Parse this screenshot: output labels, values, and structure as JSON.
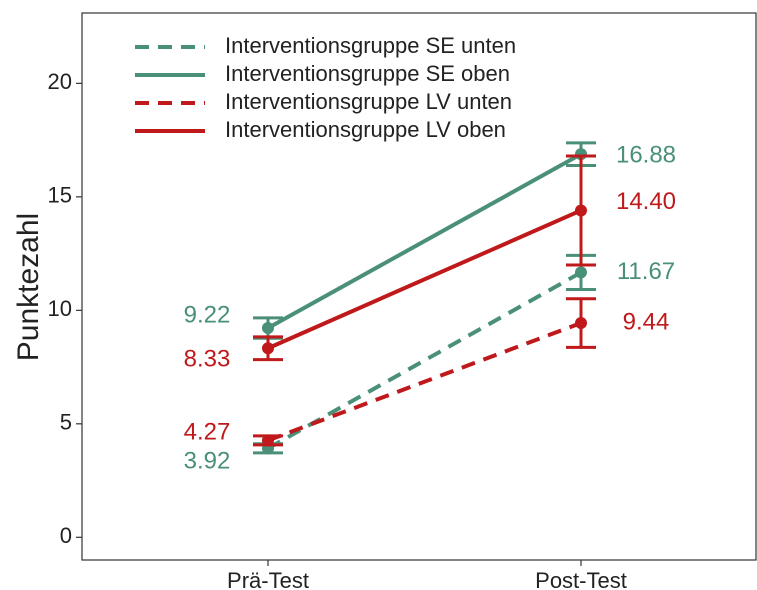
{
  "chart_data": {
    "type": "line",
    "y_label": "Punktezahl",
    "categories": [
      "Prä-Test",
      "Post-Test"
    ],
    "series": [
      {
        "name": "Interventionsgruppe SE unten",
        "color": "#4a8f78",
        "dashed": true,
        "values": [
          3.92,
          11.67
        ],
        "value_labels": [
          "3.92",
          "11.67"
        ],
        "errors": [
          0.2,
          0.75
        ]
      },
      {
        "name": "Interventionsgruppe SE oben",
        "color": "#4a8f78",
        "dashed": false,
        "values": [
          9.22,
          16.88
        ],
        "value_labels": [
          "9.22",
          "16.88"
        ],
        "errors": [
          0.45,
          0.5
        ]
      },
      {
        "name": "Interventionsgruppe LV unten",
        "color": "#c0191b",
        "dashed": true,
        "values": [
          4.27,
          9.44
        ],
        "value_labels": [
          "4.27",
          "9.44"
        ],
        "errors": [
          0.2,
          1.07
        ]
      },
      {
        "name": "Interventionsgruppe LV oben",
        "color": "#c0191b",
        "dashed": false,
        "values": [
          8.33,
          14.4
        ],
        "value_labels": [
          "8.33",
          "14.40"
        ],
        "errors": [
          0.5,
          2.4
        ]
      }
    ],
    "ylim": [
      -1.0,
      23.1
    ],
    "yticks": [
      0,
      5,
      10,
      15,
      20
    ],
    "grid": false,
    "legend": "top-left"
  }
}
